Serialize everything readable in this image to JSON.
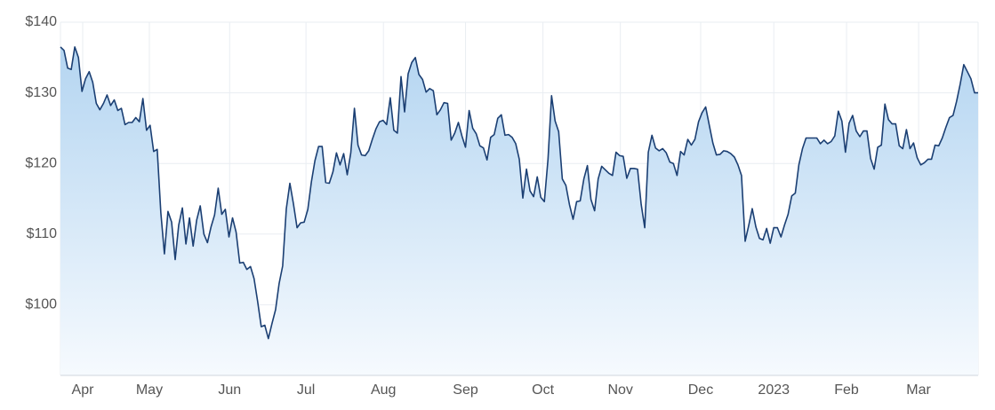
{
  "chart_data": {
    "type": "area",
    "values": [
      136.5,
      136,
      133.5,
      133.3,
      136.5,
      135,
      130.2,
      132,
      133,
      131.5,
      128.5,
      127.6,
      128.5,
      129.7,
      128.2,
      129,
      127.5,
      127.8,
      125.5,
      125.8,
      125.8,
      126.5,
      125.9,
      129.2,
      124.7,
      125.4,
      121.7,
      122,
      113,
      107.2,
      113.2,
      111.7,
      106.4,
      111.3,
      113.7,
      108.6,
      112.3,
      108.3,
      112,
      114,
      110,
      108.8,
      111,
      112.7,
      116.5,
      112.8,
      113.5,
      109.6,
      112.3,
      110.3,
      105.9,
      106,
      105,
      105.4,
      103.7,
      100.5,
      96.9,
      97.1,
      95.2,
      97.3,
      99.3,
      103,
      105.5,
      113.6,
      117.2,
      114.3,
      110.9,
      111.6,
      111.7,
      113.5,
      117.4,
      120.4,
      122.4,
      122.4,
      117.3,
      117.2,
      118.8,
      121.5,
      119.8,
      121.4,
      118.4,
      121.5,
      127.8,
      122.6,
      121.2,
      121.1,
      121.8,
      123.4,
      124.9,
      125.9,
      126.1,
      125.5,
      129.3,
      124.7,
      124.3,
      132.3,
      127.3,
      132.7,
      134.3,
      135,
      132.6,
      131.9,
      130.1,
      130.6,
      130.3,
      126.9,
      127.6,
      128.6,
      128.5,
      123.3,
      124.3,
      125.8,
      123.9,
      122.3,
      127.5,
      125,
      124.2,
      122.5,
      122.2,
      120.5,
      123.7,
      124.1,
      126.4,
      126.9,
      124,
      124.1,
      123.7,
      122.8,
      120.6,
      115.1,
      119.2,
      116.1,
      115.3,
      118.1,
      115.2,
      114.6,
      120.6,
      129.6,
      126,
      124.5,
      117.8,
      116.9,
      114.2,
      112.1,
      114.6,
      114.7,
      117.8,
      119.7,
      114.9,
      113.3,
      117.8,
      119.6,
      119.1,
      118.6,
      118.3,
      121.6,
      121.1,
      121,
      117.9,
      119.3,
      119.3,
      119.2,
      114.2,
      110.9,
      121.6,
      124,
      122.2,
      121.8,
      122.1,
      121.5,
      120.2,
      120,
      118.3,
      121.7,
      121.2,
      123.4,
      122.6,
      123.4,
      125.9,
      127.2,
      128,
      125.4,
      122.9,
      121.2,
      121.3,
      121.8,
      121.7,
      121.4,
      120.9,
      119.8,
      118.3,
      109,
      111.2,
      113.6,
      111,
      109.4,
      109.2,
      110.8,
      108.7,
      110.9,
      110.9,
      109.6,
      111.3,
      112.8,
      115.4,
      115.8,
      119.8,
      122.1,
      123.6,
      123.6,
      123.6,
      123.6,
      122.8,
      123.3,
      122.8,
      123.1,
      123.9,
      127.4,
      126,
      121.6,
      125.7,
      126.8,
      124.6,
      123.8,
      124.6,
      124.6,
      120.7,
      119.2,
      122.3,
      122.6,
      128.4,
      126.2,
      125.6,
      125.6,
      122.5,
      122.1,
      124.8,
      122.1,
      122.9,
      120.8,
      119.8,
      120.1,
      120.6,
      120.6,
      122.6,
      122.5,
      123.6,
      125.1,
      126.5,
      126.8,
      128.8,
      131.2,
      134,
      133,
      132,
      130,
      130
    ],
    "color": "#1b3f73",
    "xlim": [
      0,
      256
    ],
    "xticks": [
      {
        "value": 6.2,
        "label": "Apr"
      },
      {
        "value": 24.8,
        "label": "May"
      },
      {
        "value": 47.2,
        "label": "Jun"
      },
      {
        "value": 68.5,
        "label": "Jul"
      },
      {
        "value": 90.1,
        "label": "Aug"
      },
      {
        "value": 113,
        "label": "Sep"
      },
      {
        "value": 134.6,
        "label": "Oct"
      },
      {
        "value": 156.2,
        "label": "Nov"
      },
      {
        "value": 178.6,
        "label": "Dec"
      },
      {
        "value": 199,
        "label": "2023"
      },
      {
        "value": 219.3,
        "label": "Feb"
      },
      {
        "value": 239.4,
        "label": "Mar"
      }
    ],
    "ylim": [
      90,
      140
    ],
    "yticks": [
      {
        "value": 100,
        "label": "$100"
      },
      {
        "value": 110,
        "label": "$110"
      },
      {
        "value": 120,
        "label": "$120"
      },
      {
        "value": 130,
        "label": "$130"
      },
      {
        "value": 140,
        "label": "$140"
      }
    ],
    "grid": true
  }
}
